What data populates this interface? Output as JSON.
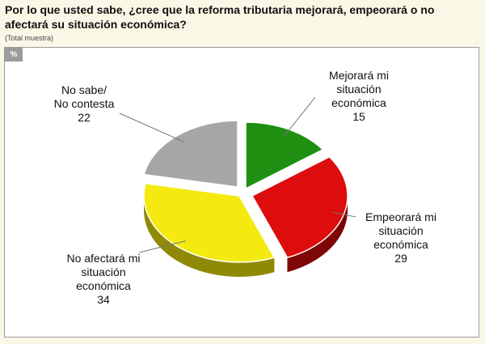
{
  "header": {
    "title": "Por lo que usted sabe, ¿cree que la reforma tributaria mejorará, empeorará o no afectará su situación económica?",
    "subtitle": "(Total muestra)"
  },
  "badge": "%",
  "chart_data": {
    "type": "pie",
    "title": "",
    "slices": [
      {
        "label_lines": [
          "Mejorará mi",
          "situación",
          "económica"
        ],
        "value": 15,
        "value_text": "15",
        "color": "#1f8f12",
        "side": "#0f5a08"
      },
      {
        "label_lines": [
          "Empeorará mi",
          "situación",
          "económica"
        ],
        "value": 29,
        "value_text": "29",
        "color": "#dd0d0d",
        "side": "#7e0606"
      },
      {
        "label_lines": [
          "No afectará mi",
          "situación",
          "económica"
        ],
        "value": 34,
        "value_text": "34",
        "color": "#f4ea10",
        "side": "#8f8a06"
      },
      {
        "label_lines": [
          "No sabe/",
          "No contesta"
        ],
        "value": 22,
        "value_text": "22",
        "color": "#a6a6a6",
        "side": "#555555"
      }
    ]
  }
}
